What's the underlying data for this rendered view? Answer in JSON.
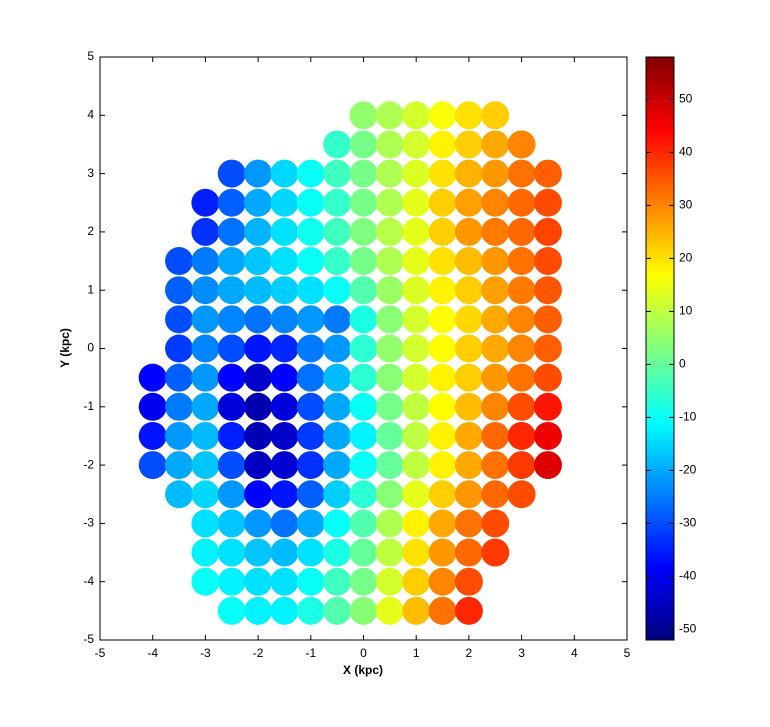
{
  "chart_data": {
    "type": "scatter",
    "xlabel": "X (kpc)",
    "ylabel": "Y (kpc)",
    "xlim": [
      -5,
      5
    ],
    "xticks": [
      -5,
      -4,
      -3,
      -2,
      -1,
      0,
      1,
      2,
      3,
      4,
      5
    ],
    "ylim": [
      -5,
      5
    ],
    "yticks": [
      -5,
      -4,
      -3,
      -2,
      -1,
      0,
      1,
      2,
      3,
      4,
      5
    ],
    "colormap": "jet",
    "clim": [
      -52,
      58
    ],
    "cticks": [
      -50,
      -40,
      -30,
      -20,
      -10,
      0,
      10,
      20,
      30,
      40,
      50
    ],
    "x": [
      0,
      0.5,
      1,
      1.5,
      2,
      2.5,
      -0.5,
      0,
      0.5,
      1,
      1.5,
      2,
      2.5,
      3,
      -2.5,
      -2,
      -1.5,
      -1,
      -0.5,
      0,
      0.5,
      1,
      1.5,
      2,
      2.5,
      3,
      3.5,
      -3,
      -2.5,
      -2,
      -1.5,
      -1,
      -0.5,
      0,
      0.5,
      1,
      1.5,
      2,
      2.5,
      3,
      3.5,
      -3,
      -2.5,
      -2,
      -1.5,
      -1,
      -0.5,
      0,
      0.5,
      1,
      1.5,
      2,
      2.5,
      3,
      3.5,
      -3.5,
      -3,
      -2.5,
      -2,
      -1.5,
      -1,
      -0.5,
      0,
      0.5,
      1,
      1.5,
      2,
      2.5,
      3,
      3.5,
      -3.5,
      -3,
      -2.5,
      -2,
      -1.5,
      -1,
      -0.5,
      0,
      0.5,
      1,
      1.5,
      2,
      2.5,
      3,
      3.5,
      -3.5,
      -3,
      -2.5,
      -2,
      -1.5,
      -1,
      -0.5,
      0,
      0.5,
      1,
      1.5,
      2,
      2.5,
      3,
      3.5,
      -3.5,
      -3,
      -2.5,
      -2,
      -1.5,
      -1,
      -0.5,
      0,
      0.5,
      1,
      1.5,
      2,
      2.5,
      3,
      3.5,
      -4,
      -3.5,
      -3,
      -2.5,
      -2,
      -1.5,
      -1,
      -0.5,
      0,
      0.5,
      1,
      1.5,
      2,
      2.5,
      3,
      3.5,
      -4,
      -3.5,
      -3,
      -2.5,
      -2,
      -1.5,
      -1,
      -0.5,
      0,
      0.5,
      1,
      1.5,
      2,
      2.5,
      3,
      3.5,
      -4,
      -3.5,
      -3,
      -2.5,
      -2,
      -1.5,
      -1,
      -0.5,
      0,
      0.5,
      1,
      1.5,
      2,
      2.5,
      3,
      3.5,
      -4,
      -3.5,
      -3,
      -2.5,
      -2,
      -1.5,
      -1,
      -0.5,
      0,
      0.5,
      1,
      1.5,
      2,
      2.5,
      3,
      3.5,
      -3.5,
      -3,
      -2.5,
      -2,
      -1.5,
      -1,
      -0.5,
      0,
      0.5,
      1,
      1.5,
      2,
      2.5,
      3,
      -3,
      -2.5,
      -2,
      -1.5,
      -1,
      -0.5,
      0,
      0.5,
      1,
      1.5,
      2,
      2.5,
      -3,
      -2.5,
      -2,
      -1.5,
      -1,
      -0.5,
      0,
      0.5,
      1,
      1.5,
      2,
      2.5,
      -3,
      -2.5,
      -2,
      -1.5,
      -1,
      -0.5,
      0,
      0.5,
      1,
      1.5,
      2,
      -2.5,
      -2,
      -1.5,
      -1,
      -0.5,
      0,
      0.5,
      1,
      1.5,
      2
    ],
    "values": [
      4,
      4,
      4,
      4,
      4,
      4,
      3.5,
      3.5,
      3.5,
      3.5,
      3.5,
      3.5,
      3.5,
      3.5,
      3,
      3,
      3,
      3,
      3,
      3,
      3,
      3,
      3,
      3,
      3,
      3,
      3,
      2.5,
      2.5,
      2.5,
      2.5,
      2.5,
      2.5,
      2.5,
      2.5,
      2.5,
      2.5,
      2.5,
      2.5,
      2.5,
      2.5,
      2,
      2,
      2,
      2,
      2,
      2,
      2,
      2,
      2,
      2,
      2,
      2,
      2,
      2,
      1.5,
      1.5,
      1.5,
      1.5,
      1.5,
      1.5,
      1.5,
      1.5,
      1.5,
      1.5,
      1.5,
      1.5,
      1.5,
      1.5,
      1.5,
      1,
      1,
      1,
      1,
      1,
      1,
      1,
      1,
      1,
      1,
      1,
      1,
      1,
      1,
      1,
      0.5,
      0.5,
      0.5,
      0.5,
      0.5,
      0.5,
      0.5,
      0.5,
      0.5,
      0.5,
      0.5,
      0.5,
      0.5,
      0.5,
      0.5,
      0,
      0,
      0,
      0,
      0,
      0,
      0,
      0,
      0,
      0,
      0,
      0,
      0,
      0,
      0,
      -0.5,
      -0.5,
      -0.5,
      -0.5,
      -0.5,
      -0.5,
      -0.5,
      -0.5,
      -0.5,
      -0.5,
      -0.5,
      -0.5,
      -0.5,
      -0.5,
      -0.5,
      -0.5,
      -1,
      -1,
      -1,
      -1,
      -1,
      -1,
      -1,
      -1,
      -1,
      -1,
      -1,
      -1,
      -1,
      -1,
      -1,
      -1,
      -1.5,
      -1.5,
      -1.5,
      -1.5,
      -1.5,
      -1.5,
      -1.5,
      -1.5,
      -1.5,
      -1.5,
      -1.5,
      -1.5,
      -1.5,
      -1.5,
      -1.5,
      -1.5,
      -2,
      -2,
      -2,
      -2,
      -2,
      -2,
      -2,
      -2,
      -2,
      -2,
      -2,
      -2,
      -2,
      -2,
      -2,
      -2,
      -2.5,
      -2.5,
      -2.5,
      -2.5,
      -2.5,
      -2.5,
      -2.5,
      -2.5,
      -2.5,
      -2.5,
      -2.5,
      -2.5,
      -2.5,
      -2.5,
      -3,
      -3,
      -3,
      -3,
      -3,
      -3,
      -3,
      -3,
      -3,
      -3,
      -3,
      -3,
      -3.5,
      -3.5,
      -3.5,
      -3.5,
      -3.5,
      -3.5,
      -3.5,
      -3.5,
      -3.5,
      -3.5,
      -3.5,
      -3.5,
      -4,
      -4,
      -4,
      -4,
      -4,
      -4,
      -4,
      -4,
      -4,
      -4,
      -4,
      -4.5,
      -4.5,
      -4.5,
      -4.5,
      -4.5,
      -4.5,
      -4.5,
      -4.5,
      -4.5,
      -4.5
    ],
    "color_values": [
      5,
      8,
      12,
      16,
      20,
      22,
      -5,
      2,
      8,
      12,
      18,
      22,
      26,
      30,
      -30,
      -22,
      -15,
      -10,
      -4,
      2,
      8,
      13,
      20,
      25,
      28,
      32,
      34,
      -35,
      -28,
      -20,
      -15,
      -10,
      -5,
      2,
      8,
      14,
      22,
      27,
      30,
      33,
      36,
      -33,
      -26,
      -19,
      -14,
      -9,
      -4,
      3,
      9,
      14,
      22,
      28,
      31,
      33,
      37,
      -30,
      -25,
      -20,
      -17,
      -14,
      -10,
      -5,
      2,
      8,
      14,
      20,
      24,
      28,
      32,
      36,
      -28,
      -23,
      -20,
      -18,
      -16,
      -14,
      -10,
      -2,
      6,
      13,
      18,
      22,
      27,
      31,
      35,
      -30,
      -22,
      -24,
      -26,
      -24,
      -22,
      -25,
      -8,
      4,
      12,
      17,
      21,
      26,
      30,
      34,
      -32,
      -24,
      -30,
      -36,
      -34,
      -25,
      -22,
      -6,
      5,
      12,
      17,
      22,
      26,
      30,
      34,
      -38,
      -28,
      -22,
      -38,
      -44,
      -38,
      -26,
      -18,
      -6,
      4,
      12,
      18,
      22,
      28,
      32,
      36,
      -40,
      -25,
      -20,
      -42,
      -47,
      -42,
      -30,
      -20,
      -10,
      2,
      10,
      17,
      24,
      30,
      36,
      42,
      -36,
      -22,
      -18,
      -35,
      -46,
      -44,
      -32,
      -20,
      -12,
      0,
      10,
      18,
      26,
      33,
      40,
      46,
      -30,
      -20,
      -17,
      -30,
      -45,
      -43,
      -33,
      -20,
      -10,
      0,
      10,
      18,
      26,
      32,
      38,
      48,
      -18,
      -15,
      -22,
      -38,
      -36,
      -28,
      -16,
      -6,
      4,
      14,
      22,
      28,
      33,
      36,
      -14,
      -17,
      -22,
      -26,
      -20,
      -10,
      -2,
      8,
      18,
      26,
      32,
      36,
      -12,
      -14,
      -17,
      -18,
      -14,
      -8,
      0,
      10,
      20,
      28,
      33,
      38,
      -10,
      -12,
      -14,
      -14,
      -10,
      -4,
      2,
      12,
      22,
      30,
      36,
      -10,
      -12,
      -12,
      -8,
      -2,
      4,
      14,
      24,
      32,
      40
    ]
  }
}
